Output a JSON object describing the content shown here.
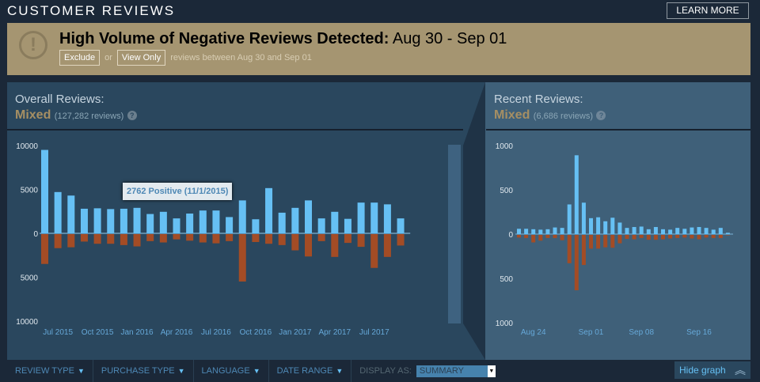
{
  "header": {
    "title": "CUSTOMER REVIEWS",
    "learn_more": "LEARN MORE"
  },
  "banner": {
    "icon": "exclamation-icon",
    "heading": "High Volume of Negative Reviews Detected:",
    "range": "Aug 30 - Sep 01",
    "exclude": "Exclude",
    "or": "or",
    "view_only": "View Only",
    "note": "reviews between Aug 30 and Sep 01"
  },
  "overall": {
    "label": "Overall Reviews:",
    "summary": "Mixed",
    "count": "(127,282 reviews)",
    "help": "?"
  },
  "recent": {
    "label": "Recent Reviews:",
    "summary": "Mixed",
    "count": "(6,686 reviews)",
    "help": "?"
  },
  "tooltip": "2762 Positive (11/1/2015)",
  "colors": {
    "positive": "#66c0f4",
    "negative": "#a34c25",
    "background": "#1b2838",
    "banner": "#a59571"
  },
  "chart_data": [
    {
      "type": "bar",
      "title": "",
      "stacked": "diverging",
      "categories": [
        "Jun 2015",
        "Jul 2015",
        "Aug 2015",
        "Sep 2015",
        "Oct 2015",
        "Nov 2015",
        "Dec 2015",
        "Jan 2016",
        "Feb 2016",
        "Mar 2016",
        "Apr 2016",
        "May 2016",
        "Jun 2016",
        "Jul 2016",
        "Aug 2016",
        "Sep 2016",
        "Oct 2016",
        "Nov 2016",
        "Dec 2016",
        "Jan 2017",
        "Feb 2017",
        "Mar 2017",
        "Apr 2017",
        "May 2017",
        "Jun 2017",
        "Jul 2017",
        "Aug 2017",
        "Sep 2017"
      ],
      "tick_labels": [
        {
          "at": "Jul 2015",
          "label": "Jul 2015"
        },
        {
          "at": "Oct 2015",
          "label": "Oct 2015"
        },
        {
          "at": "Jan 2016",
          "label": "Jan 2016"
        },
        {
          "at": "Apr 2016",
          "label": "Apr 2016"
        },
        {
          "at": "Jul 2016",
          "label": "Jul 2016"
        },
        {
          "at": "Oct 2016",
          "label": "Oct 2016"
        },
        {
          "at": "Jan 2017",
          "label": "Jan 2017"
        },
        {
          "at": "Apr 2017",
          "label": "Apr 2017"
        },
        {
          "at": "Jul 2017",
          "label": "Jul 2017"
        }
      ],
      "yticks": [
        "10000",
        "5000",
        "0",
        "5000",
        "10000"
      ],
      "ylim": [
        -10000,
        10000
      ],
      "series": [
        {
          "name": "Positive",
          "values": [
            9500,
            4700,
            4300,
            2800,
            2850,
            2762,
            2800,
            2900,
            2200,
            2450,
            1700,
            2250,
            2600,
            2600,
            1850,
            3750,
            1600,
            5150,
            2350,
            2900,
            3750,
            1700,
            2450,
            1650,
            3500,
            3500,
            3300,
            1700
          ]
        },
        {
          "name": "Negative",
          "values": [
            3400,
            1600,
            1500,
            850,
            1100,
            1100,
            1250,
            1400,
            800,
            950,
            600,
            750,
            950,
            1050,
            800,
            5400,
            900,
            1100,
            1250,
            1850,
            2550,
            800,
            2600,
            1000,
            1450,
            3850,
            2600,
            1300
          ]
        }
      ]
    },
    {
      "type": "bar",
      "title": "",
      "stacked": "diverging",
      "categories": [
        "Aug 22",
        "Aug 23",
        "Aug 24",
        "Aug 25",
        "Aug 26",
        "Aug 27",
        "Aug 28",
        "Aug 29",
        "Aug 30",
        "Aug 31",
        "Sep 01",
        "Sep 02",
        "Sep 03",
        "Sep 04",
        "Sep 05",
        "Sep 06",
        "Sep 07",
        "Sep 08",
        "Sep 09",
        "Sep 10",
        "Sep 11",
        "Sep 12",
        "Sep 13",
        "Sep 14",
        "Sep 15",
        "Sep 16",
        "Sep 17",
        "Sep 18",
        "Sep 19",
        "Sep 20"
      ],
      "tick_labels": [
        {
          "at": "Aug 24",
          "label": "Aug 24"
        },
        {
          "at": "Sep 01",
          "label": "Sep 01"
        },
        {
          "at": "Sep 08",
          "label": "Sep 08"
        },
        {
          "at": "Sep 16",
          "label": "Sep 16"
        }
      ],
      "yticks": [
        "1000",
        "500",
        "0",
        "500",
        "1000"
      ],
      "ylim": [
        -1000,
        1000
      ],
      "series": [
        {
          "name": "Positive",
          "values": [
            60,
            60,
            55,
            50,
            55,
            75,
            70,
            335,
            890,
            355,
            180,
            190,
            145,
            185,
            130,
            70,
            80,
            85,
            55,
            80,
            55,
            50,
            70,
            60,
            75,
            80,
            70,
            50,
            70,
            15
          ]
        },
        {
          "name": "Negative",
          "values": [
            30,
            35,
            85,
            65,
            35,
            35,
            60,
            320,
            625,
            340,
            155,
            155,
            140,
            145,
            95,
            45,
            50,
            35,
            55,
            55,
            50,
            40,
            35,
            30,
            40,
            50,
            30,
            35,
            35,
            5
          ]
        }
      ]
    }
  ],
  "filters": {
    "review_type": "REVIEW TYPE",
    "purchase_type": "PURCHASE TYPE",
    "language": "LANGUAGE",
    "date_range": "DATE RANGE",
    "display_as": "DISPLAY AS:",
    "display_value": "SUMMARY",
    "hide_graph": "Hide graph"
  }
}
